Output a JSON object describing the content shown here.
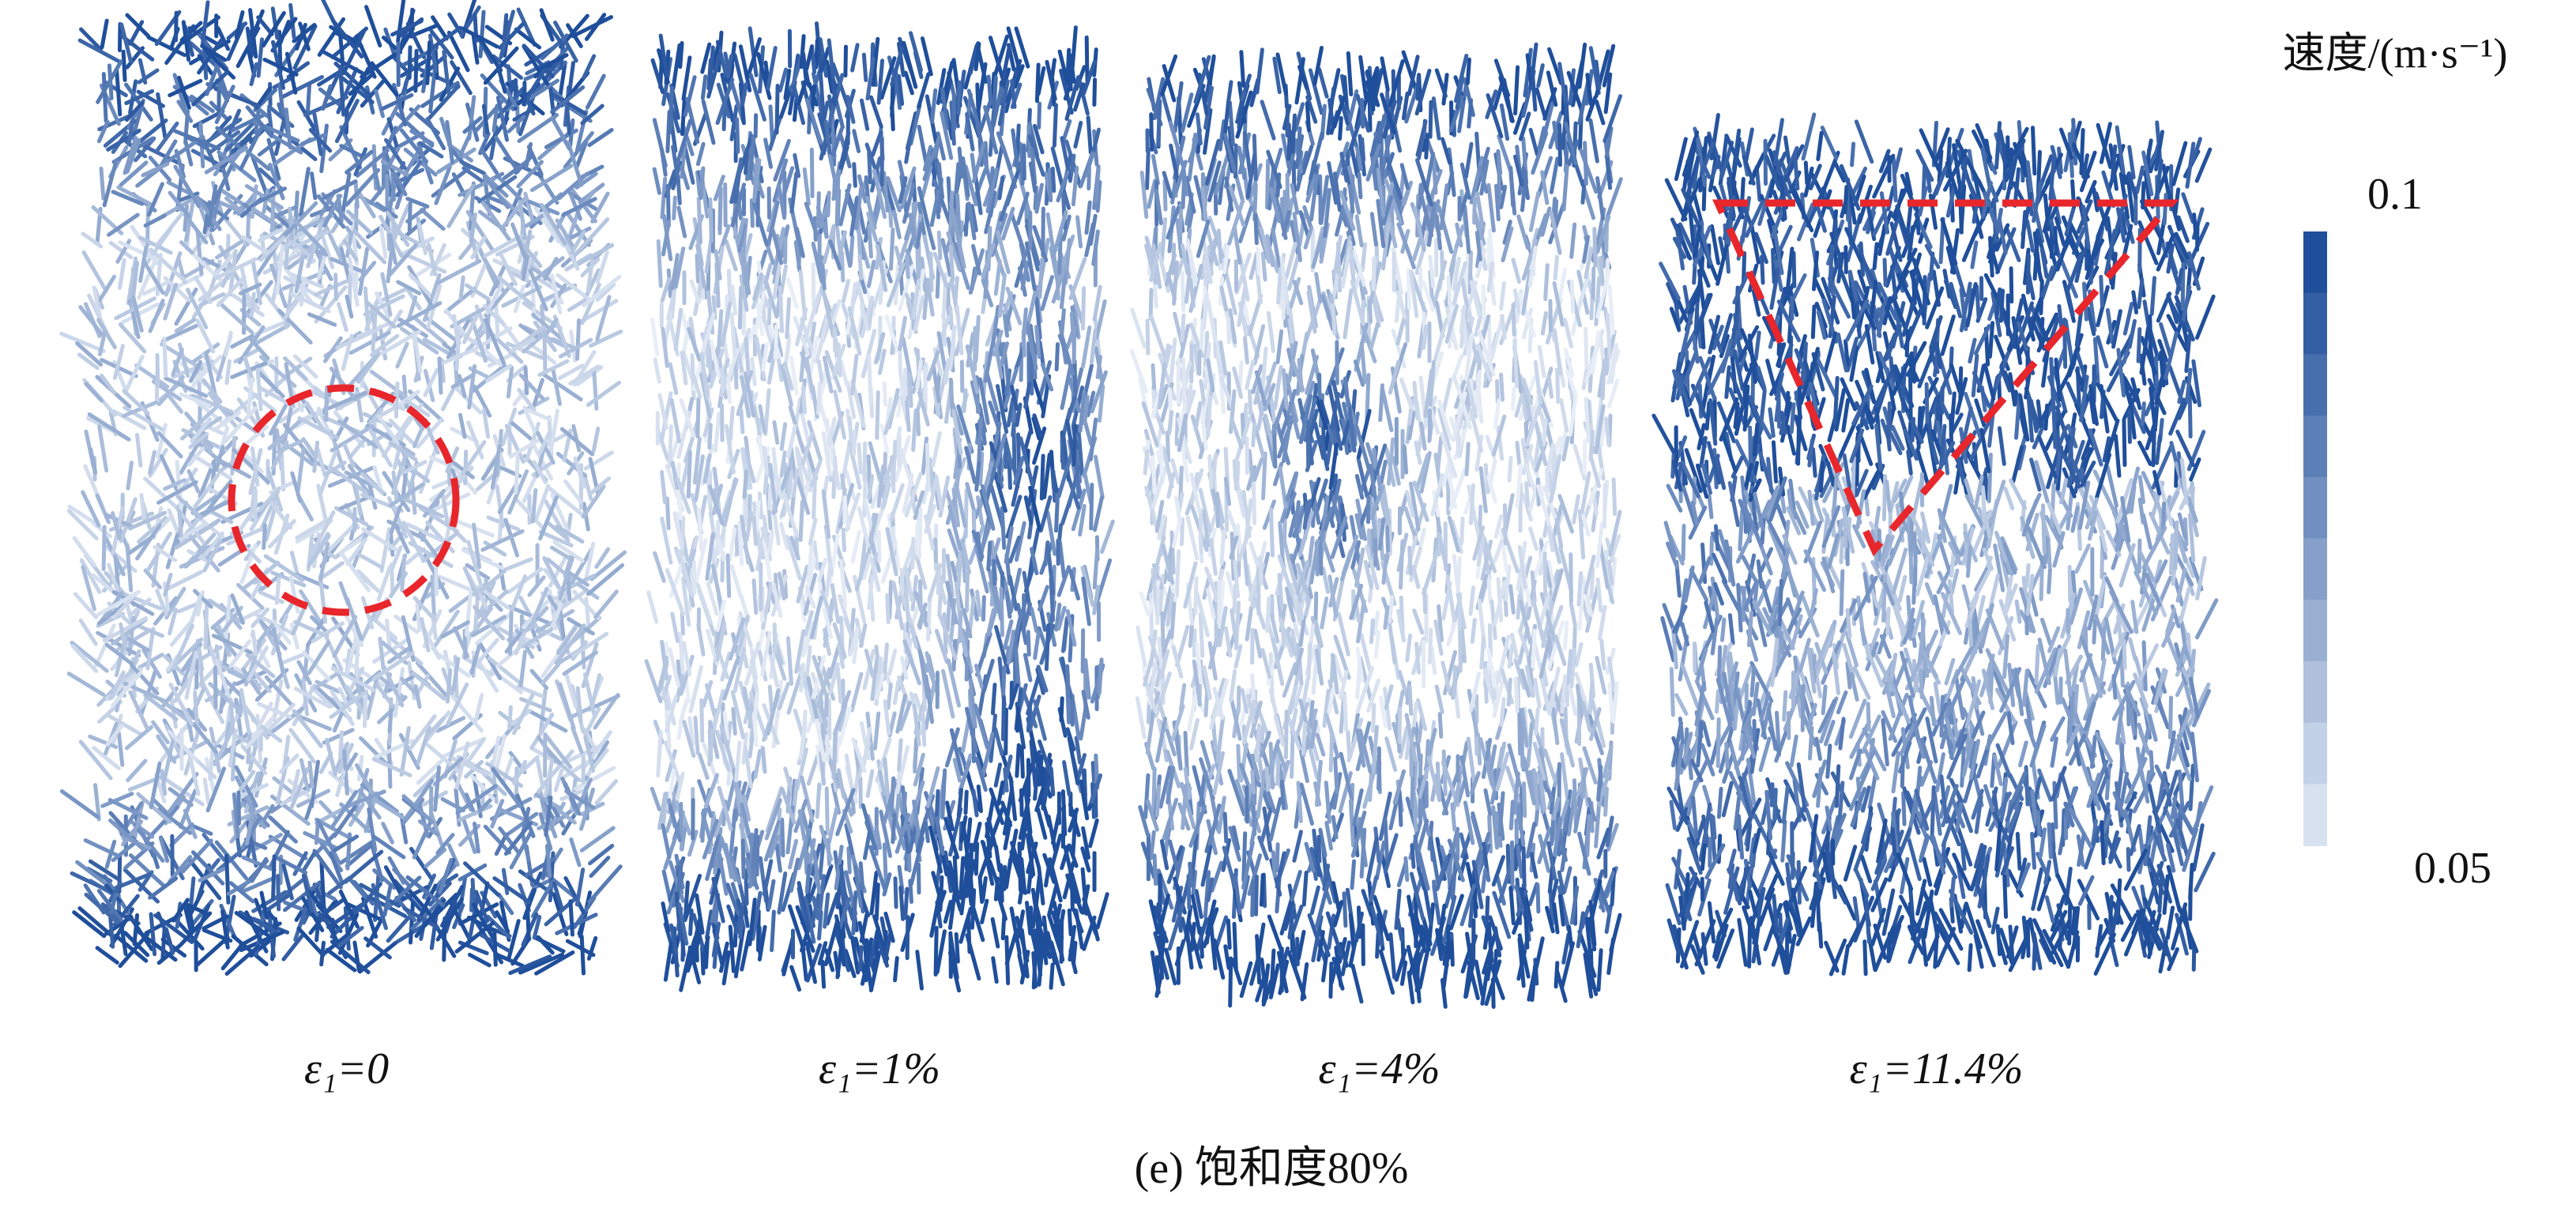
{
  "panels": [
    {
      "label": "ε₁=0"
    },
    {
      "label": "ε₁=1%"
    },
    {
      "label": "ε₁=4%"
    },
    {
      "label": "ε₁=11.4%"
    }
  ],
  "colorbar": {
    "title": "速度/(m·s⁻¹)",
    "max": 0.1,
    "min": 0.05
  },
  "caption": "(e) 饱和度80%"
}
